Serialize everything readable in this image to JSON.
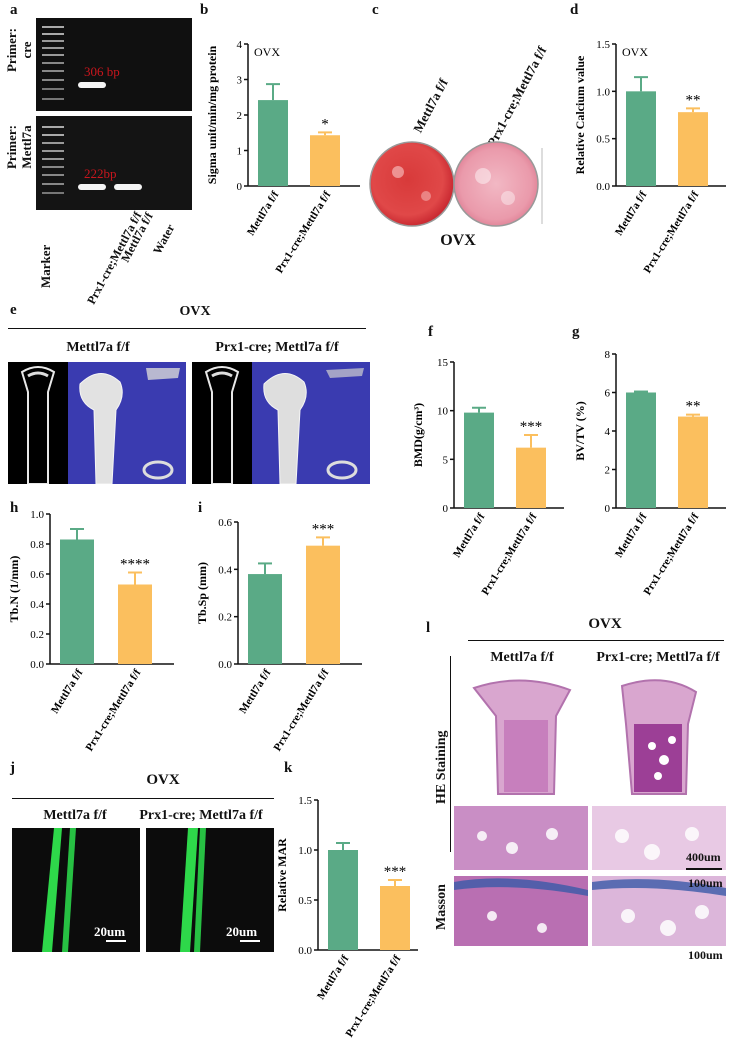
{
  "panels": {
    "a": "a",
    "b": "b",
    "c": "c",
    "d": "d",
    "e": "e",
    "f": "f",
    "g": "g",
    "h": "h",
    "i": "i",
    "j": "j",
    "k": "k",
    "l": "l"
  },
  "gel": {
    "primer_cre": [
      "Primer:",
      "cre"
    ],
    "primer_mettl7a": [
      "Primer:",
      "Mettl7a"
    ],
    "band_top": "306 bp",
    "band_bottom": "222bp",
    "lanes": [
      "Marker",
      "Prx1-cre;Mettl7a f/f",
      "Mettl7a f/f",
      "Water"
    ]
  },
  "plate": {
    "label_left": "Mettl7a f/f",
    "label_right": "Prx1-cre;Mettl7a f/f",
    "caption": "OVX"
  },
  "microct": {
    "title": "OVX",
    "group1": "Mettl7a f/f",
    "group2": "Prx1-cre; Mettl7a f/f"
  },
  "histology": {
    "title": "OVX",
    "col1": "Mettl7a f/f",
    "col2": "Prx1-cre; Mettl7a f/f",
    "row1": "HE Staining",
    "row2": "Masson",
    "scale1": "400um",
    "scale2": "100um",
    "scale3": "100um"
  },
  "fluor": {
    "title": "OVX",
    "group1": "Mettl7a f/f",
    "group2": "Prx1-cre; Mettl7a f/f",
    "scale": "20um"
  },
  "colors": {
    "wt": "#5aaa86",
    "ko": "#fbbf5e",
    "gel_bg": "#101010",
    "ct_bg": "#3a3bb0"
  },
  "chart_data": [
    {
      "panel": "b",
      "type": "bar",
      "annotation": "OVX",
      "categories": [
        "Mettl7a f/f",
        "Prx1-cre;Mettl7a f/f"
      ],
      "values": [
        2.42,
        1.43
      ],
      "errors": [
        0.45,
        0.08
      ],
      "ylabel": "Sigma unit/min/mg protein",
      "ylim": [
        0,
        4
      ],
      "yticks": [
        0,
        1,
        2,
        3,
        4
      ],
      "significance": "*"
    },
    {
      "panel": "d",
      "type": "bar",
      "annotation": "OVX",
      "categories": [
        "Mettl7a f/f",
        "Prx1-cre;Mettl7a f/f"
      ],
      "values": [
        1.0,
        0.78
      ],
      "errors": [
        0.15,
        0.04
      ],
      "ylabel": "Relative Calcium value",
      "ylim": [
        0,
        1.5
      ],
      "yticks": [
        0.0,
        0.5,
        1.0,
        1.5
      ],
      "significance": "**"
    },
    {
      "panel": "f",
      "type": "bar",
      "annotation": "",
      "categories": [
        "Mettl7a f/f",
        "Prx1-cre;Mettl7a f/f"
      ],
      "values": [
        9.8,
        6.2
      ],
      "errors": [
        0.5,
        1.3
      ],
      "ylabel": "BMD(g/cm³)",
      "ylim": [
        0,
        15
      ],
      "yticks": [
        0,
        5,
        10,
        15
      ],
      "significance": "***"
    },
    {
      "panel": "g",
      "type": "bar",
      "annotation": "",
      "categories": [
        "Mettl7a f/f",
        "Prx1-cre;Mettl7a f/f"
      ],
      "values": [
        6.0,
        4.75
      ],
      "errors": [
        0.05,
        0.1
      ],
      "ylabel": "BV/TV (%)",
      "ylim": [
        0,
        8
      ],
      "yticks": [
        0,
        2,
        4,
        6,
        8
      ],
      "significance": "**"
    },
    {
      "panel": "h",
      "type": "bar",
      "annotation": "",
      "categories": [
        "Mettl7a f/f",
        "Prx1-cre;Mettl7a f/f"
      ],
      "values": [
        0.83,
        0.53
      ],
      "errors": [
        0.07,
        0.08
      ],
      "ylabel": "Tb.N (1/mm)",
      "ylim": [
        0,
        1.0
      ],
      "yticks": [
        0.0,
        0.2,
        0.4,
        0.6,
        0.8,
        1.0
      ],
      "significance": "****"
    },
    {
      "panel": "i",
      "type": "bar",
      "annotation": "",
      "categories": [
        "Mettl7a f/f",
        "Prx1-cre;Mettl7a f/f"
      ],
      "values": [
        0.38,
        0.5
      ],
      "errors": [
        0.045,
        0.035
      ],
      "ylabel": "Tb.Sp (mm)",
      "ylim": [
        0,
        0.6
      ],
      "yticks": [
        0.0,
        0.2,
        0.4,
        0.6
      ],
      "significance": "***"
    },
    {
      "panel": "k",
      "type": "bar",
      "annotation": "",
      "categories": [
        "Mettl7a f/f",
        "Prx1-cre;Mettl7a f/f"
      ],
      "values": [
        1.0,
        0.64
      ],
      "errors": [
        0.07,
        0.06
      ],
      "ylabel": "Relative MAR",
      "ylim": [
        0,
        1.5
      ],
      "yticks": [
        0.0,
        0.5,
        1.0,
        1.5
      ],
      "significance": "***"
    }
  ]
}
